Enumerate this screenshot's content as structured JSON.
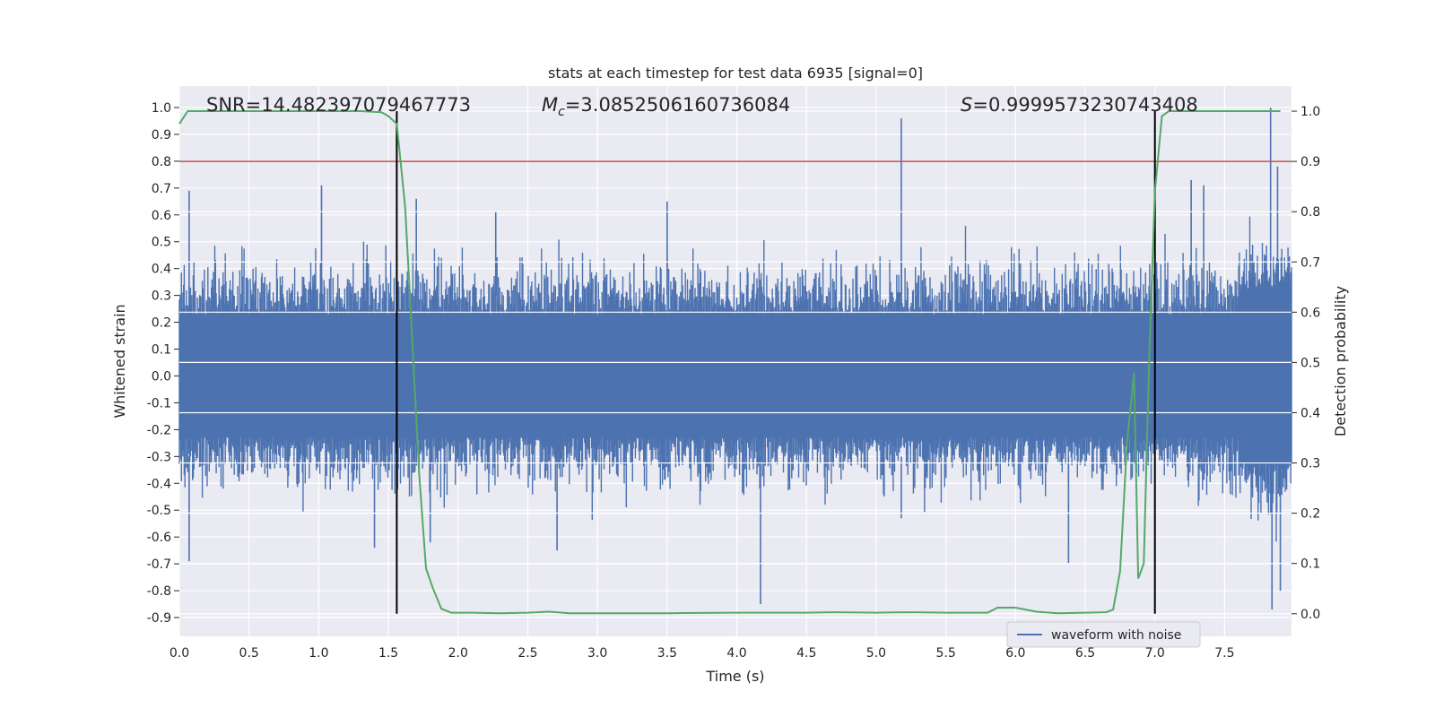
{
  "chart_data": {
    "type": "line",
    "title": "stats at each timestep for test data 6935 [signal=0]",
    "xlabel": "Time (s)",
    "ylabel": "Whitened strain",
    "y2label": "Detection probability",
    "xlim": [
      0.0,
      7.98
    ],
    "ylim": [
      -0.97,
      1.08
    ],
    "y2lim": [
      -0.045,
      1.05
    ],
    "xticks": [
      "0.0",
      "0.5",
      "1.0",
      "1.5",
      "2.0",
      "2.5",
      "3.0",
      "3.5",
      "4.0",
      "4.5",
      "5.0",
      "5.5",
      "6.0",
      "6.5",
      "7.0",
      "7.5"
    ],
    "yticks": [
      "1.0",
      "0.9",
      "0.8",
      "0.7",
      "0.6",
      "0.5",
      "0.4",
      "0.3",
      "0.2",
      "0.1",
      "0.0",
      "-0.1",
      "-0.2",
      "-0.3",
      "-0.4",
      "-0.5",
      "-0.6",
      "-0.7",
      "-0.8",
      "-0.9"
    ],
    "y2ticks": [
      "1.0",
      "0.9",
      "0.8",
      "0.7",
      "0.6",
      "0.5",
      "0.4",
      "0.3",
      "0.2",
      "0.1",
      "0.0"
    ],
    "annotations": {
      "snr": "SNR=14.482397079467773",
      "mc_symbol": "M",
      "mc_sub": "c",
      "mc_value": "=3.0852506160736084",
      "s_symbol": "S",
      "s_value": "=0.9999573230743408"
    },
    "threshold_line": {
      "axis": "y2",
      "value": 0.9,
      "color": "#c44e52"
    },
    "vertical_lines": [
      1.56,
      7.0
    ],
    "series": [
      {
        "name": "waveform with noise",
        "axis": "y",
        "color": "#4c72b0",
        "style": "noise",
        "core_amplitude": 0.22,
        "spikes": [
          {
            "x": 0.07,
            "y": 0.69
          },
          {
            "x": 0.07,
            "y": -0.69
          },
          {
            "x": 1.02,
            "y": 0.71
          },
          {
            "x": 1.4,
            "y": -0.64
          },
          {
            "x": 1.56,
            "y": 0.45
          },
          {
            "x": 1.7,
            "y": 0.66
          },
          {
            "x": 1.8,
            "y": -0.62
          },
          {
            "x": 2.27,
            "y": 0.61
          },
          {
            "x": 2.71,
            "y": -0.65
          },
          {
            "x": 3.5,
            "y": 0.65
          },
          {
            "x": 4.17,
            "y": -0.85
          },
          {
            "x": 5.18,
            "y": 0.96
          },
          {
            "x": 5.18,
            "y": -0.53
          },
          {
            "x": 6.38,
            "y": -0.7
          },
          {
            "x": 7.26,
            "y": 0.73
          },
          {
            "x": 7.35,
            "y": 0.71
          },
          {
            "x": 7.83,
            "y": 1.0
          },
          {
            "x": 7.84,
            "y": -0.87
          },
          {
            "x": 7.88,
            "y": 0.78
          },
          {
            "x": 7.9,
            "y": -0.8
          }
        ]
      },
      {
        "name": "Detection probability",
        "axis": "y2",
        "color": "#55a868",
        "x": [
          0.0,
          0.06,
          0.2,
          0.5,
          0.8,
          1.1,
          1.3,
          1.45,
          1.5,
          1.56,
          1.62,
          1.67,
          1.72,
          1.77,
          1.82,
          1.88,
          1.95,
          2.1,
          2.3,
          2.5,
          2.65,
          2.8,
          3.0,
          3.5,
          4.0,
          4.5,
          4.7,
          5.0,
          5.2,
          5.5,
          5.8,
          5.87,
          6.0,
          6.15,
          6.3,
          6.5,
          6.65,
          6.7,
          6.75,
          6.8,
          6.85,
          6.88,
          6.92,
          6.96,
          7.0,
          7.05,
          7.1,
          7.3,
          7.6,
          7.9
        ],
        "y": [
          0.975,
          1.0,
          1.0,
          1.0,
          1.0,
          1.0,
          1.0,
          0.998,
          0.99,
          0.975,
          0.81,
          0.55,
          0.28,
          0.09,
          0.05,
          0.01,
          0.002,
          0.002,
          0.001,
          0.002,
          0.004,
          0.001,
          0.001,
          0.001,
          0.002,
          0.002,
          0.003,
          0.002,
          0.003,
          0.002,
          0.002,
          0.012,
          0.012,
          0.004,
          0.001,
          0.002,
          0.003,
          0.008,
          0.085,
          0.34,
          0.48,
          0.07,
          0.1,
          0.52,
          0.84,
          0.99,
          1.0,
          1.0,
          1.0,
          1.0
        ]
      }
    ],
    "legend": {
      "placement": "bottom-right",
      "label": "waveform with noise"
    }
  }
}
